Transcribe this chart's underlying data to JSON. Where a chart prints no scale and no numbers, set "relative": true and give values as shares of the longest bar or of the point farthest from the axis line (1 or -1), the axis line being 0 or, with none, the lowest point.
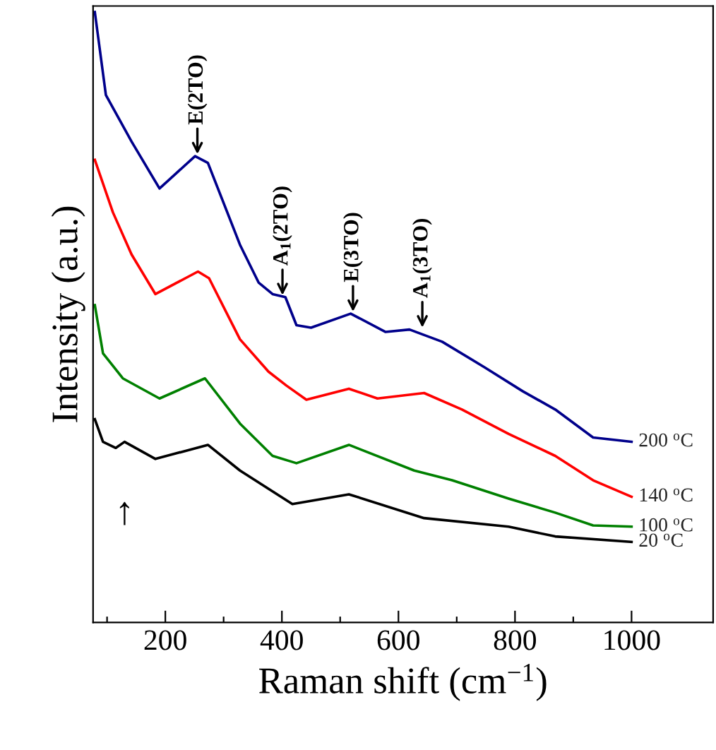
{
  "chart_data": {
    "type": "line",
    "relative": true,
    "xlabel": "Raman shift (cm$^{−1}$)",
    "ylabel": "Intensity (a.u.)",
    "xlim": [
      76,
      1140
    ],
    "xticks": [
      {
        "value": 100,
        "label": null
      },
      200,
      {
        "value": 300,
        "label": null
      },
      400,
      {
        "value": 500,
        "label": null
      },
      600,
      {
        "value": 700,
        "label": null
      },
      800,
      {
        "value": 900,
        "label": null
      },
      1000
    ],
    "grid": false,
    "legend": false,
    "marker": "none",
    "line_style": "solid",
    "series": [
      {
        "name": "200 $^{o}$C",
        "color": "#00008b",
        "x": [
          79,
          98,
          142,
          190,
          251,
          273,
          328,
          360,
          384,
          406,
          425,
          450,
          518,
          578,
          619,
          675,
          748,
          813,
          869,
          934,
          1000
        ],
        "values": [
          1.0,
          0.864,
          0.788,
          0.711,
          0.764,
          0.753,
          0.619,
          0.557,
          0.538,
          0.533,
          0.487,
          0.483,
          0.506,
          0.476,
          0.48,
          0.46,
          0.418,
          0.379,
          0.349,
          0.303,
          0.296
        ]
      },
      {
        "name": "140 $^{o}$C",
        "color": "#ff0000",
        "x": [
          79,
          110,
          142,
          183,
          256,
          275,
          328,
          377,
          408,
          442,
          515,
          564,
          644,
          709,
          789,
          869,
          934,
          1000
        ],
        "values": [
          0.758,
          0.672,
          0.603,
          0.538,
          0.575,
          0.564,
          0.464,
          0.411,
          0.388,
          0.365,
          0.383,
          0.367,
          0.376,
          0.349,
          0.309,
          0.273,
          0.233,
          0.206
        ]
      },
      {
        "name": "100 $^{o}$C",
        "color": "#008000",
        "x": [
          79,
          93,
          127,
          190,
          268,
          328,
          384,
          425,
          515,
          627,
          692,
          789,
          869,
          934,
          1000
        ],
        "values": [
          0.52,
          0.441,
          0.4,
          0.367,
          0.4,
          0.326,
          0.273,
          0.261,
          0.291,
          0.249,
          0.233,
          0.203,
          0.18,
          0.159,
          0.157
        ]
      },
      {
        "name": "20 $^{o}$C",
        "color": "#000000",
        "x": [
          79,
          93,
          115,
          130,
          183,
          273,
          328,
          418,
          515,
          644,
          789,
          869,
          1000
        ],
        "values": [
          0.333,
          0.296,
          0.286,
          0.296,
          0.268,
          0.291,
          0.249,
          0.194,
          0.21,
          0.171,
          0.157,
          0.141,
          0.132
        ]
      }
    ],
    "annotations": [
      {
        "text": "E(2TO)",
        "x": 255,
        "y": 0.764
      },
      {
        "text": "A$_{1}$(2TO)",
        "x": 401,
        "y": 0.533
      },
      {
        "text": "E(3TO)",
        "x": 522,
        "y": 0.506
      },
      {
        "text": "A$_{1}$(3TO)",
        "x": 641,
        "y": 0.48
      },
      {
        "text": "↑",
        "x": 130,
        "y": 0.296
      }
    ]
  }
}
